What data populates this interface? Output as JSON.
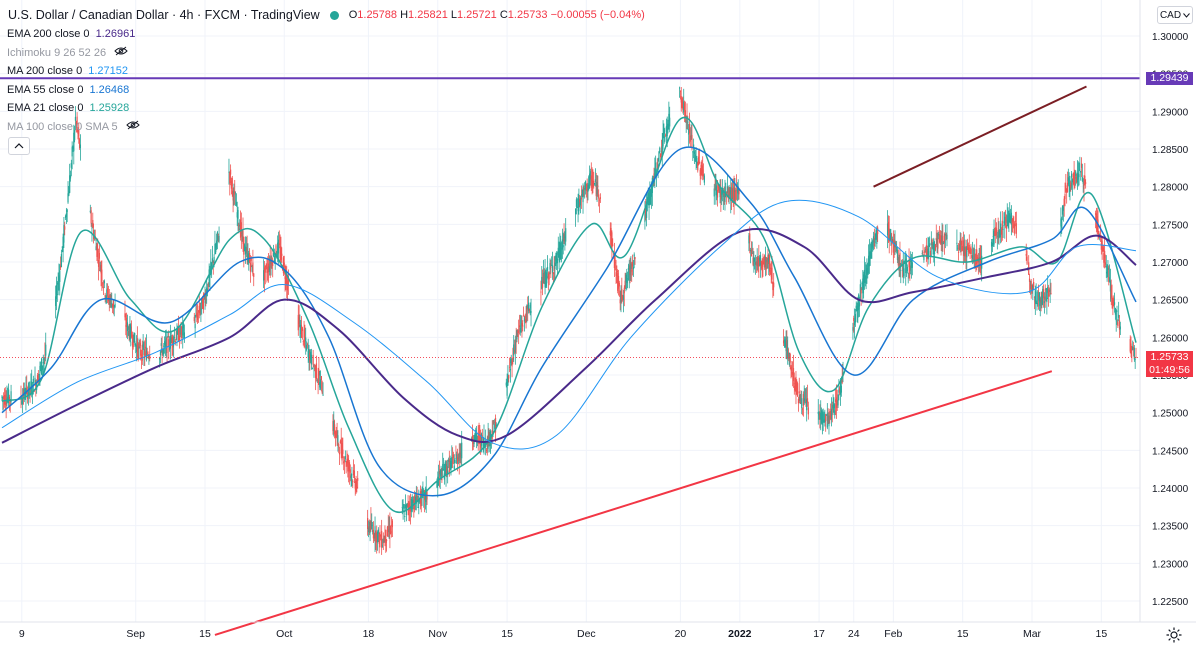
{
  "header": {
    "title": "U.S. Dollar / Canadian Dollar · 4h · FXCM · TradingView",
    "open_label": "O",
    "open": "1.25788",
    "high_label": "H",
    "high": "1.25821",
    "low_label": "L",
    "low": "1.25721",
    "close_label": "C",
    "close": "1.25733",
    "change": "−0.00055 (−0.04%)"
  },
  "indicators": [
    {
      "name": "EMA 200 close 0",
      "value": "1.26961",
      "color": "#4a2a8a"
    },
    {
      "name": "Ichimoku 9 26 52 26",
      "value": "",
      "hidden": true
    },
    {
      "name": "MA 200 close 0",
      "value": "1.27152",
      "color": "#2196f3"
    },
    {
      "name": "EMA 55 close 0",
      "value": "1.26468",
      "color": "#1976d2"
    },
    {
      "name": "EMA 21 close 0",
      "value": "1.25928",
      "color": "#26a69a"
    },
    {
      "name": "MA 100 close 0 SMA 5",
      "value": "",
      "hidden": true
    }
  ],
  "currency": "CAD",
  "price_badge": {
    "value": "1.25733",
    "countdown": "01:49:56",
    "color": "#f23645"
  },
  "resistance_badge": {
    "value": "1.29439",
    "color": "#673ab7"
  },
  "chart_data": {
    "type": "line",
    "title": "U.S. Dollar / Canadian Dollar",
    "ylim": [
      1.2205,
      1.306
    ],
    "yticks": [
      "1.30000",
      "1.29500",
      "1.29000",
      "1.28500",
      "1.28000",
      "1.27500",
      "1.27000",
      "1.26500",
      "1.26000",
      "1.25500",
      "1.25000",
      "1.24500",
      "1.24000",
      "1.23500",
      "1.23000",
      "1.22500"
    ],
    "x_dates": [
      "2021-08-05",
      "2022-03-22"
    ],
    "x_labels": [
      {
        "label": "9",
        "date": "2021-08-09"
      },
      {
        "label": "Sep",
        "date": "2021-09-01"
      },
      {
        "label": "15",
        "date": "2021-09-15"
      },
      {
        "label": "Oct",
        "date": "2021-10-01"
      },
      {
        "label": "18",
        "date": "2021-10-18"
      },
      {
        "label": "Nov",
        "date": "2021-11-01"
      },
      {
        "label": "15",
        "date": "2021-11-15"
      },
      {
        "label": "Dec",
        "date": "2021-12-01"
      },
      {
        "label": "20",
        "date": "2021-12-20"
      },
      {
        "label": "2022",
        "date": "2022-01-01",
        "bold": true
      },
      {
        "label": "17",
        "date": "2022-01-17"
      },
      {
        "label": "24",
        "date": "2022-01-24"
      },
      {
        "label": "Feb",
        "date": "2022-02-01"
      },
      {
        "label": "15",
        "date": "2022-02-15"
      },
      {
        "label": "Mar",
        "date": "2022-03-01"
      },
      {
        "label": "15",
        "date": "2022-03-15"
      }
    ],
    "price_path": [
      [
        "2021-08-05",
        1.252
      ],
      [
        "2021-08-09",
        1.252
      ],
      [
        "2021-08-12",
        1.254
      ],
      [
        "2021-08-15",
        1.26
      ],
      [
        "2021-08-17",
        1.27
      ],
      [
        "2021-08-19",
        1.282
      ],
      [
        "2021-08-20",
        1.289
      ],
      [
        "2021-08-23",
        1.276
      ],
      [
        "2021-08-26",
        1.266
      ],
      [
        "2021-08-30",
        1.262
      ],
      [
        "2021-09-02",
        1.258
      ],
      [
        "2021-09-06",
        1.258
      ],
      [
        "2021-09-09",
        1.26
      ],
      [
        "2021-09-13",
        1.262
      ],
      [
        "2021-09-15",
        1.265
      ],
      [
        "2021-09-18",
        1.274
      ],
      [
        "2021-09-20",
        1.282
      ],
      [
        "2021-09-23",
        1.272
      ],
      [
        "2021-09-26",
        1.267
      ],
      [
        "2021-09-30",
        1.272
      ],
      [
        "2021-10-03",
        1.264
      ],
      [
        "2021-10-06",
        1.258
      ],
      [
        "2021-10-09",
        1.253
      ],
      [
        "2021-10-12",
        1.246
      ],
      [
        "2021-10-16",
        1.24
      ],
      [
        "2021-10-18",
        1.235
      ],
      [
        "2021-10-21",
        1.233
      ],
      [
        "2021-10-24",
        1.236
      ],
      [
        "2021-10-27",
        1.238
      ],
      [
        "2021-10-30",
        1.239
      ],
      [
        "2021-11-02",
        1.242
      ],
      [
        "2021-11-05",
        1.244
      ],
      [
        "2021-11-08",
        1.247
      ],
      [
        "2021-11-11",
        1.246
      ],
      [
        "2021-11-14",
        1.25
      ],
      [
        "2021-11-17",
        1.26
      ],
      [
        "2021-11-21",
        1.266
      ],
      [
        "2021-11-25",
        1.27
      ],
      [
        "2021-11-29",
        1.277
      ],
      [
        "2021-12-02",
        1.281
      ],
      [
        "2021-12-05",
        1.278
      ],
      [
        "2021-12-08",
        1.265
      ],
      [
        "2021-12-11",
        1.271
      ],
      [
        "2021-12-14",
        1.279
      ],
      [
        "2021-12-17",
        1.287
      ],
      [
        "2021-12-20",
        1.293
      ],
      [
        "2021-12-23",
        1.284
      ],
      [
        "2021-12-26",
        1.28
      ],
      [
        "2021-12-29",
        1.279
      ],
      [
        "2022-01-01",
        1.279
      ],
      [
        "2022-01-04",
        1.27
      ],
      [
        "2022-01-07",
        1.27
      ],
      [
        "2022-01-10",
        1.26
      ],
      [
        "2022-01-13",
        1.252
      ],
      [
        "2022-01-16",
        1.25
      ],
      [
        "2022-01-19",
        1.249
      ],
      [
        "2022-01-21",
        1.252
      ],
      [
        "2022-01-24",
        1.262
      ],
      [
        "2022-01-27",
        1.27
      ],
      [
        "2022-01-30",
        1.276
      ],
      [
        "2022-02-03",
        1.269
      ],
      [
        "2022-02-07",
        1.271
      ],
      [
        "2022-02-11",
        1.273
      ],
      [
        "2022-02-15",
        1.272
      ],
      [
        "2022-02-19",
        1.27
      ],
      [
        "2022-02-22",
        1.274
      ],
      [
        "2022-02-25",
        1.276
      ],
      [
        "2022-02-28",
        1.27
      ],
      [
        "2022-03-02",
        1.265
      ],
      [
        "2022-03-05",
        1.266
      ],
      [
        "2022-03-08",
        1.28
      ],
      [
        "2022-03-11",
        1.282
      ],
      [
        "2022-03-14",
        1.276
      ],
      [
        "2022-03-16",
        1.27
      ],
      [
        "2022-03-18",
        1.263
      ],
      [
        "2022-03-20",
        1.26
      ],
      [
        "2022-03-22",
        1.2573
      ]
    ],
    "series": [
      {
        "name": "EMA 21 close 0",
        "color": "#26a69a",
        "points": [
          [
            "2021-08-05",
            1.2515
          ],
          [
            "2021-08-13",
            1.2545
          ],
          [
            "2021-08-21",
            1.274
          ],
          [
            "2021-08-31",
            1.265
          ],
          [
            "2021-09-09",
            1.261
          ],
          [
            "2021-09-20",
            1.273
          ],
          [
            "2021-09-27",
            1.273
          ],
          [
            "2021-10-06",
            1.262
          ],
          [
            "2021-10-14",
            1.248
          ],
          [
            "2021-10-23",
            1.237
          ],
          [
            "2021-11-01",
            1.241
          ],
          [
            "2021-11-12",
            1.247
          ],
          [
            "2021-11-22",
            1.264
          ],
          [
            "2021-12-02",
            1.275
          ],
          [
            "2021-12-09",
            1.271
          ],
          [
            "2021-12-20",
            1.289
          ],
          [
            "2021-12-28",
            1.28
          ],
          [
            "2022-01-06",
            1.273
          ],
          [
            "2022-01-13",
            1.258
          ],
          [
            "2022-01-20",
            1.253
          ],
          [
            "2022-01-27",
            1.264
          ],
          [
            "2022-02-05",
            1.2705
          ],
          [
            "2022-02-16",
            1.27
          ],
          [
            "2022-02-27",
            1.272
          ],
          [
            "2022-03-06",
            1.27
          ],
          [
            "2022-03-13",
            1.279
          ],
          [
            "2022-03-22",
            1.2593
          ]
        ]
      },
      {
        "name": "EMA 55 close 0",
        "color": "#1976d2",
        "points": [
          [
            "2021-08-05",
            1.25
          ],
          [
            "2021-08-15",
            1.256
          ],
          [
            "2021-08-25",
            1.265
          ],
          [
            "2021-09-08",
            1.262
          ],
          [
            "2021-09-22",
            1.27
          ],
          [
            "2021-10-01",
            1.269
          ],
          [
            "2021-10-10",
            1.26
          ],
          [
            "2021-10-20",
            1.243
          ],
          [
            "2021-11-01",
            1.239
          ],
          [
            "2021-11-12",
            1.244
          ],
          [
            "2021-11-22",
            1.256
          ],
          [
            "2021-12-05",
            1.269
          ],
          [
            "2021-12-20",
            1.285
          ],
          [
            "2022-01-03",
            1.278
          ],
          [
            "2022-01-12",
            1.268
          ],
          [
            "2022-01-24",
            1.255
          ],
          [
            "2022-02-05",
            1.265
          ],
          [
            "2022-02-20",
            1.27
          ],
          [
            "2022-03-05",
            1.273
          ],
          [
            "2022-03-12",
            1.277
          ],
          [
            "2022-03-22",
            1.2647
          ]
        ]
      },
      {
        "name": "EMA 200 close 0",
        "color": "#4a2a8a",
        "points": [
          [
            "2021-08-05",
            1.246
          ],
          [
            "2021-08-20",
            1.251
          ],
          [
            "2021-09-05",
            1.256
          ],
          [
            "2021-09-20",
            1.26
          ],
          [
            "2021-10-01",
            1.265
          ],
          [
            "2021-10-12",
            1.261
          ],
          [
            "2021-10-25",
            1.252
          ],
          [
            "2021-11-05",
            1.247
          ],
          [
            "2021-11-15",
            1.247
          ],
          [
            "2021-12-01",
            1.256
          ],
          [
            "2021-12-15",
            1.265
          ],
          [
            "2022-01-01",
            1.274
          ],
          [
            "2022-01-14",
            1.272
          ],
          [
            "2022-01-25",
            1.265
          ],
          [
            "2022-02-05",
            1.266
          ],
          [
            "2022-02-20",
            1.268
          ],
          [
            "2022-03-05",
            1.27
          ],
          [
            "2022-03-14",
            1.2735
          ],
          [
            "2022-03-22",
            1.2696
          ]
        ]
      },
      {
        "name": "MA 200 close 0",
        "color": "#2196f3",
        "points": [
          [
            "2021-08-05",
            1.248
          ],
          [
            "2021-08-20",
            1.254
          ],
          [
            "2021-09-05",
            1.258
          ],
          [
            "2021-09-20",
            1.263
          ],
          [
            "2021-10-01",
            1.267
          ],
          [
            "2021-10-15",
            1.262
          ],
          [
            "2021-10-30",
            1.254
          ],
          [
            "2021-11-12",
            1.246
          ],
          [
            "2021-11-25",
            1.247
          ],
          [
            "2021-12-10",
            1.26
          ],
          [
            "2021-12-28",
            1.272
          ],
          [
            "2022-01-10",
            1.278
          ],
          [
            "2022-01-25",
            1.276
          ],
          [
            "2022-02-10",
            1.268
          ],
          [
            "2022-02-28",
            1.266
          ],
          [
            "2022-03-10",
            1.272
          ],
          [
            "2022-03-22",
            1.2715
          ]
        ]
      }
    ],
    "annotations": [
      {
        "name": "resistance-line",
        "type": "horizontal",
        "y": 1.29439,
        "color": "#673ab7"
      },
      {
        "name": "support-trendline",
        "type": "segment",
        "from": [
          "2021-09-17",
          1.2205
        ],
        "to": [
          "2022-03-05",
          1.2555
        ],
        "color": "#f23645"
      },
      {
        "name": "upper-trendline",
        "type": "segment",
        "from": [
          "2022-01-28",
          1.28
        ],
        "to": [
          "2022-03-12",
          1.2933
        ],
        "color": "#7b1e24"
      },
      {
        "name": "last-price-line",
        "type": "horizontal",
        "y": 1.25733,
        "color": "#f23645",
        "dotted": true
      }
    ],
    "grid": true,
    "legend_position": "top-left"
  }
}
